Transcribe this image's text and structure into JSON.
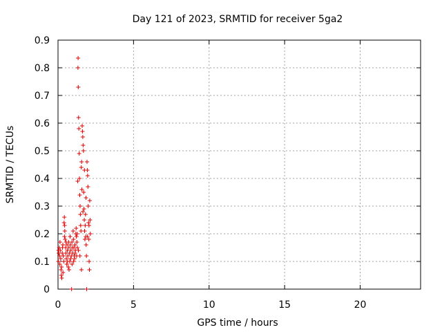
{
  "chart_data": {
    "type": "scatter",
    "title": "Day 121 of 2023, SRMTID for receiver 5ga2",
    "xlabel": "GPS time / hours",
    "ylabel": "SRMTID / TECUs",
    "xlim": [
      0,
      24
    ],
    "ylim": [
      0,
      0.9
    ],
    "xticks": [
      0,
      5,
      10,
      15,
      20
    ],
    "xtick_labels": [
      "0",
      "5",
      "10",
      "15",
      "20"
    ],
    "yticks": [
      0,
      0.1,
      0.2,
      0.3,
      0.4,
      0.5,
      0.6,
      0.7,
      0.8,
      0.9
    ],
    "ytick_labels": [
      "0",
      "0.1",
      "0.2",
      "0.3",
      "0.4",
      "0.5",
      "0.6",
      "0.7",
      "0.8",
      "0.9"
    ],
    "grid": true,
    "marker": "+",
    "color": "#dd0000",
    "series": [
      {
        "name": "SRMTID",
        "points": [
          [
            0.02,
            0.1
          ],
          [
            0.05,
            0.13
          ],
          [
            0.08,
            0.15
          ],
          [
            0.1,
            0.12
          ],
          [
            0.12,
            0.09
          ],
          [
            0.15,
            0.14
          ],
          [
            0.18,
            0.11
          ],
          [
            0.2,
            0.07
          ],
          [
            0.22,
            0.05
          ],
          [
            0.25,
            0.04
          ],
          [
            0.28,
            0.13
          ],
          [
            0.3,
            0.15
          ],
          [
            0.32,
            0.16
          ],
          [
            0.35,
            0.12
          ],
          [
            0.38,
            0.1
          ],
          [
            0.4,
            0.24
          ],
          [
            0.42,
            0.26
          ],
          [
            0.44,
            0.23
          ],
          [
            0.45,
            0.21
          ],
          [
            0.47,
            0.18
          ],
          [
            0.5,
            0.15
          ],
          [
            0.52,
            0.13
          ],
          [
            0.55,
            0.11
          ],
          [
            0.58,
            0.09
          ],
          [
            0.6,
            0.16
          ],
          [
            0.62,
            0.14
          ],
          [
            0.65,
            0.12
          ],
          [
            0.68,
            0.08
          ],
          [
            0.7,
            0.17
          ],
          [
            0.72,
            0.15
          ],
          [
            0.75,
            0.13
          ],
          [
            0.78,
            0.1
          ],
          [
            0.8,
            0.19
          ],
          [
            0.82,
            0.16
          ],
          [
            0.85,
            0.14
          ],
          [
            0.88,
            0.12
          ],
          [
            0.9,
            0.0
          ],
          [
            0.92,
            0.17
          ],
          [
            0.95,
            0.15
          ],
          [
            0.98,
            0.13
          ],
          [
            1.0,
            0.21
          ],
          [
            1.02,
            0.18
          ],
          [
            1.05,
            0.15
          ],
          [
            1.08,
            0.12
          ],
          [
            1.1,
            0.11
          ],
          [
            1.12,
            0.16
          ],
          [
            1.15,
            0.14
          ],
          [
            1.18,
            0.2
          ],
          [
            1.2,
            0.22
          ],
          [
            1.22,
            0.19
          ],
          [
            1.25,
            0.17
          ],
          [
            1.28,
            0.15
          ],
          [
            1.3,
            0.39
          ],
          [
            1.32,
            0.8
          ],
          [
            1.33,
            0.835
          ],
          [
            1.34,
            0.73
          ],
          [
            1.36,
            0.62
          ],
          [
            1.38,
            0.58
          ],
          [
            1.4,
            0.49
          ],
          [
            1.42,
            0.4
          ],
          [
            1.44,
            0.34
          ],
          [
            1.46,
            0.3
          ],
          [
            1.48,
            0.27
          ],
          [
            1.5,
            0.23
          ],
          [
            1.52,
            0.21
          ],
          [
            1.54,
            0.44
          ],
          [
            1.56,
            0.46
          ],
          [
            1.58,
            0.36
          ],
          [
            1.6,
            0.59
          ],
          [
            1.62,
            0.57
          ],
          [
            1.64,
            0.55
          ],
          [
            1.66,
            0.52
          ],
          [
            1.68,
            0.5
          ],
          [
            1.7,
            0.35
          ],
          [
            1.72,
            0.29
          ],
          [
            1.74,
            0.25
          ],
          [
            1.76,
            0.21
          ],
          [
            1.78,
            0.18
          ],
          [
            1.8,
            0.23
          ],
          [
            1.82,
            0.27
          ],
          [
            1.84,
            0.19
          ],
          [
            1.86,
            0.16
          ],
          [
            1.88,
            0.12
          ],
          [
            1.9,
            0.0
          ],
          [
            1.92,
            0.46
          ],
          [
            1.94,
            0.43
          ],
          [
            1.96,
            0.41
          ],
          [
            1.98,
            0.37
          ],
          [
            2.0,
            0.3
          ],
          [
            2.02,
            0.24
          ],
          [
            2.04,
            0.18
          ],
          [
            2.06,
            0.1
          ],
          [
            2.08,
            0.07
          ],
          [
            2.1,
            0.32
          ],
          [
            2.12,
            0.25
          ],
          [
            2.14,
            0.2
          ],
          [
            0.03,
            0.14
          ],
          [
            0.13,
            0.17
          ],
          [
            0.23,
            0.08
          ],
          [
            0.33,
            0.06
          ],
          [
            0.43,
            0.19
          ],
          [
            0.53,
            0.17
          ],
          [
            0.63,
            0.1
          ],
          [
            0.73,
            0.07
          ],
          [
            0.83,
            0.11
          ],
          [
            0.93,
            0.09
          ],
          [
            1.03,
            0.1
          ],
          [
            1.13,
            0.13
          ],
          [
            1.23,
            0.12
          ],
          [
            1.27,
            0.2
          ],
          [
            1.35,
            0.14
          ],
          [
            1.45,
            0.12
          ],
          [
            1.55,
            0.07
          ],
          [
            1.65,
            0.28
          ],
          [
            1.75,
            0.43
          ],
          [
            1.85,
            0.33
          ],
          [
            1.95,
            0.19
          ],
          [
            2.05,
            0.23
          ]
        ]
      }
    ]
  }
}
